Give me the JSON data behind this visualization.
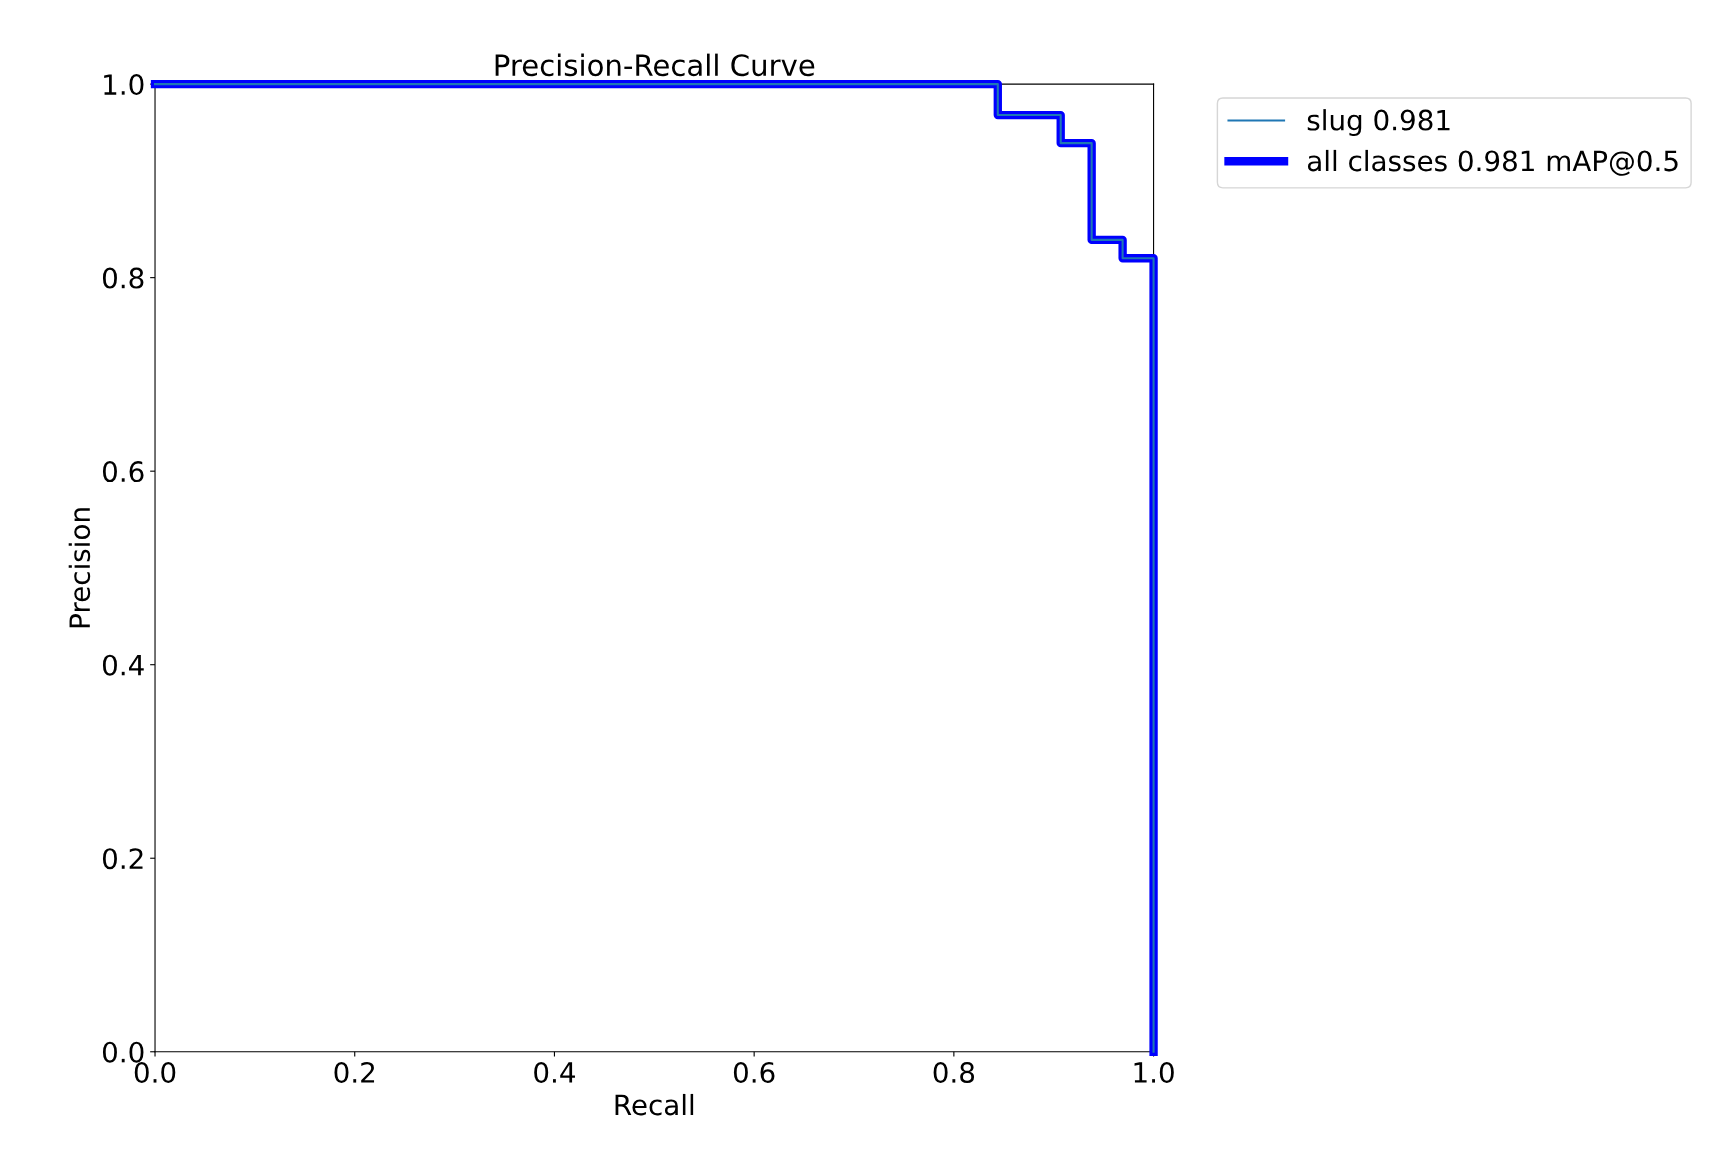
{
  "chart_data": {
    "type": "step",
    "title": "Precision-Recall Curve",
    "xlabel": "Recall",
    "ylabel": "Precision",
    "x": [
      0,
      0.844,
      0.907,
      0.938,
      0.969,
      1.0
    ],
    "series": [
      {
        "name": "all classes 0.981 mAP@0.5",
        "color": "#0000ff",
        "values": [
          1.0,
          0.968,
          0.939,
          0.839,
          0.82,
          0.0
        ]
      },
      {
        "name": "slug 0.981",
        "color": "#1f77b4",
        "values": [
          1.0,
          0.968,
          0.939,
          0.839,
          0.82,
          0.0
        ]
      }
    ],
    "xlim": [
      0,
      1
    ],
    "ylim": [
      0,
      1
    ],
    "xticks": [
      {
        "value": 0,
        "label": "0.0"
      },
      0.2,
      0.4,
      0.6,
      0.8,
      {
        "value": 1,
        "label": "1.0"
      }
    ],
    "yticks": [
      {
        "value": 0,
        "label": "0.0"
      },
      0.2,
      0.4,
      0.6,
      0.8,
      {
        "value": 1,
        "label": "1.0"
      }
    ],
    "grid": false,
    "legend": "top right"
  }
}
